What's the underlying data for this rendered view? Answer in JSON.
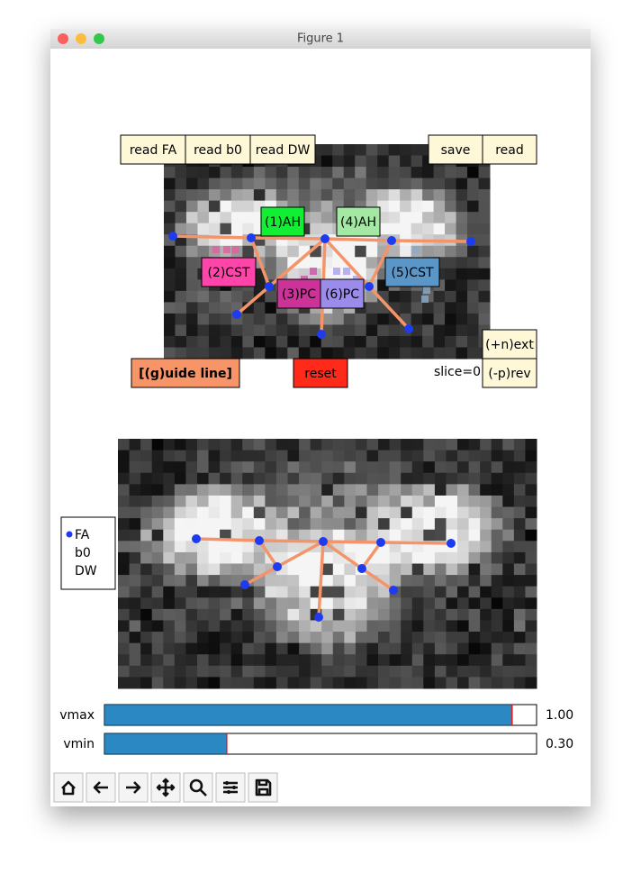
{
  "window": {
    "title": "Figure 1"
  },
  "file_buttons": [
    "read FA",
    "read b0",
    "read DW"
  ],
  "io_buttons": [
    "save",
    "read"
  ],
  "roi_labels": [
    {
      "label": "(1)AH",
      "color": "#11ee33"
    },
    {
      "label": "(4)AH",
      "color": "#a3e8a3"
    },
    {
      "label": "(2)CST",
      "color": "#ff44aa"
    },
    {
      "label": "(5)CST",
      "color": "#5a97c8"
    },
    {
      "label": "(3)PC",
      "color": "#cc3399"
    },
    {
      "label": "(6)PC",
      "color": "#9b8bea"
    }
  ],
  "guide_button": "[(g)uide line]",
  "reset_button": "reset",
  "slice_label": "slice=0",
  "next_button": "(+n)ext",
  "prev_button": "(-p)rev",
  "radio": {
    "options": [
      "FA",
      "b0",
      "DW"
    ],
    "selected": 0
  },
  "sliders": [
    {
      "label": "vmax",
      "value": 1,
      "value_label": "1.00",
      "range": [
        0,
        1.06
      ]
    },
    {
      "label": "vmin",
      "value": 0.3,
      "value_label": "0.30",
      "range": [
        0,
        1.06
      ]
    }
  ]
}
